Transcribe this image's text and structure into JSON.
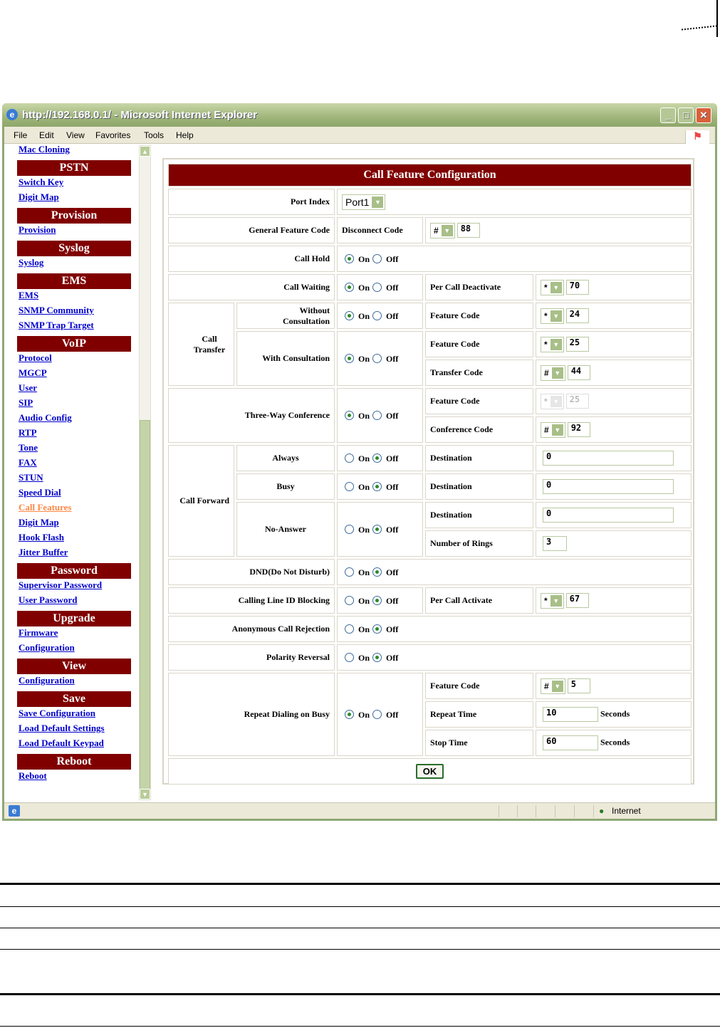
{
  "window": {
    "title": "http://192.168.0.1/ - Microsoft Internet Explorer",
    "minimize": "_",
    "maximize": "□",
    "close": "✕"
  },
  "menu": [
    "File",
    "Edit",
    "View",
    "Favorites",
    "Tools",
    "Help"
  ],
  "sidebar": [
    {
      "type": "link",
      "label": "Mac Cloning"
    },
    {
      "type": "head",
      "label": "PSTN"
    },
    {
      "type": "link",
      "label": "Switch Key"
    },
    {
      "type": "link",
      "label": "Digit Map"
    },
    {
      "type": "head",
      "label": "Provision"
    },
    {
      "type": "link",
      "label": "Provision"
    },
    {
      "type": "head",
      "label": "Syslog"
    },
    {
      "type": "link",
      "label": "Syslog"
    },
    {
      "type": "head",
      "label": "EMS"
    },
    {
      "type": "link",
      "label": "EMS"
    },
    {
      "type": "link",
      "label": "SNMP Community"
    },
    {
      "type": "link",
      "label": "SNMP Trap Target"
    },
    {
      "type": "head",
      "label": "VoIP"
    },
    {
      "type": "link",
      "label": "Protocol"
    },
    {
      "type": "link",
      "label": "MGCP"
    },
    {
      "type": "link",
      "label": "User"
    },
    {
      "type": "link",
      "label": "SIP"
    },
    {
      "type": "link",
      "label": "Audio Config"
    },
    {
      "type": "link",
      "label": "RTP"
    },
    {
      "type": "link",
      "label": "Tone"
    },
    {
      "type": "link",
      "label": "FAX"
    },
    {
      "type": "link",
      "label": "STUN"
    },
    {
      "type": "link",
      "label": "Speed Dial"
    },
    {
      "type": "link",
      "label": "Call Features",
      "active": true
    },
    {
      "type": "link",
      "label": "Digit Map"
    },
    {
      "type": "link",
      "label": "Hook Flash"
    },
    {
      "type": "link",
      "label": "Jitter Buffer"
    },
    {
      "type": "head",
      "label": "Password"
    },
    {
      "type": "link",
      "label": "Supervisor Password"
    },
    {
      "type": "link",
      "label": "User Password"
    },
    {
      "type": "head",
      "label": "Upgrade"
    },
    {
      "type": "link",
      "label": "Firmware"
    },
    {
      "type": "link",
      "label": "Configuration"
    },
    {
      "type": "head",
      "label": "View"
    },
    {
      "type": "link",
      "label": "Configuration"
    },
    {
      "type": "head",
      "label": "Save"
    },
    {
      "type": "link",
      "label": "Save Configuration"
    },
    {
      "type": "link",
      "label": "Load Default Settings"
    },
    {
      "type": "link",
      "label": "Load Default Keypad"
    },
    {
      "type": "head",
      "label": "Reboot"
    },
    {
      "type": "link",
      "label": "Reboot"
    }
  ],
  "form": {
    "title": "Call Feature Configuration",
    "on": "On",
    "off": "Off",
    "seconds": "Seconds",
    "ok": "OK",
    "port_index": {
      "label": "Port Index",
      "value": "Port1"
    },
    "general": {
      "label": "General Feature Code",
      "sub": "Disconnect Code",
      "sym": "#",
      "code": "88"
    },
    "call_hold": {
      "label": "Call Hold",
      "state": "on"
    },
    "call_waiting": {
      "label": "Call Waiting",
      "state": "on",
      "sub": "Per Call Deactivate",
      "sym": "*",
      "code": "70"
    },
    "call_transfer": {
      "label": "Call Transfer",
      "without": {
        "label": "Without Consultation",
        "state": "on",
        "sub": "Feature Code",
        "sym": "*",
        "code": "24"
      },
      "with": {
        "label": "With Consultation",
        "state": "on",
        "feature_label": "Feature Code",
        "feature_sym": "*",
        "feature_code": "25",
        "transfer_label": "Transfer Code",
        "transfer_sym": "#",
        "transfer_code": "44"
      }
    },
    "three_way": {
      "label": "Three-Way Conference",
      "state": "on",
      "feature_label": "Feature Code",
      "feature_sym": "*",
      "feature_code": "25",
      "conf_label": "Conference Code",
      "conf_sym": "#",
      "conf_code": "92"
    },
    "call_forward": {
      "label": "Call Forward",
      "always": {
        "label": "Always",
        "state": "off",
        "sub": "Destination",
        "value": "0"
      },
      "busy": {
        "label": "Busy",
        "state": "off",
        "sub": "Destination",
        "value": "0"
      },
      "no_answer": {
        "label": "No-Answer",
        "state": "off",
        "sub": "Destination",
        "value": "0",
        "rings_label": "Number of Rings",
        "rings": "3"
      }
    },
    "dnd": {
      "label": "DND(Do Not Disturb)",
      "state": "off"
    },
    "clid": {
      "label": "Calling Line ID Blocking",
      "state": "off",
      "sub": "Per Call Activate",
      "sym": "*",
      "code": "67"
    },
    "anon": {
      "label": "Anonymous Call Rejection",
      "state": "off"
    },
    "polarity": {
      "label": "Polarity Reversal",
      "state": "off"
    },
    "repeat": {
      "label": "Repeat Dialing on Busy",
      "state": "on",
      "feature_label": "Feature Code",
      "feature_sym": "#",
      "feature_code": "5",
      "time_label": "Repeat Time",
      "time": "10",
      "stop_label": "Stop Time",
      "stop": "60"
    }
  },
  "status": {
    "zone": "Internet"
  },
  "colors": {
    "header": "#800000",
    "link": "#0000cc",
    "active_link": "#ff8844"
  }
}
